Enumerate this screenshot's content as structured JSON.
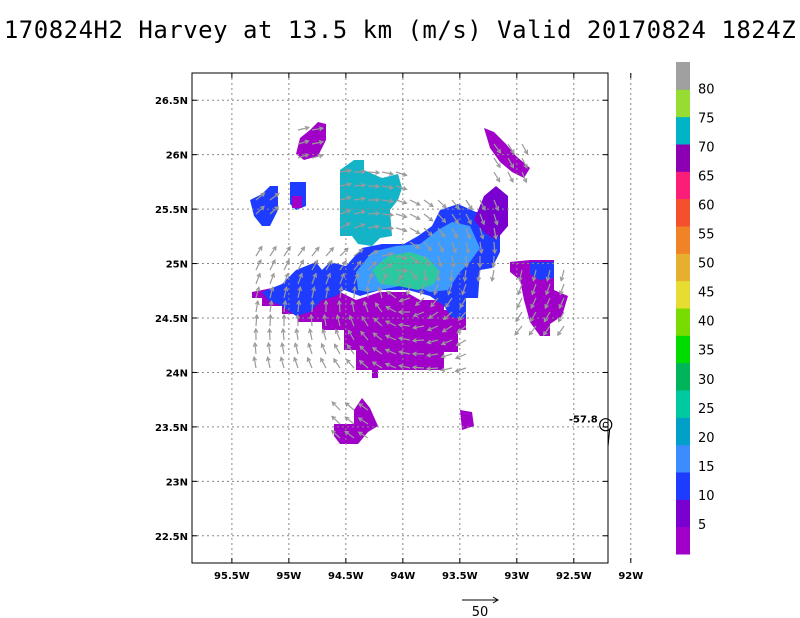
{
  "title": "170824H2 Harvey at 13.5 km (m/s) Valid 20170824 1824Z",
  "axes": {
    "lat_ticks": [
      "26.5N",
      "26N",
      "25.5N",
      "25N",
      "24.5N",
      "24N",
      "23.5N",
      "23N",
      "22.5N"
    ],
    "lon_ticks": [
      "95.5W",
      "95W",
      "94.5W",
      "94W",
      "93.5W",
      "93W",
      "92.5W",
      "92W"
    ],
    "lat_values": [
      26.5,
      26.0,
      25.5,
      25.0,
      24.5,
      24.0,
      23.5,
      23.0,
      22.5
    ],
    "lon_values": [
      -95.5,
      -95.0,
      -94.5,
      -94.0,
      -93.5,
      -93.0,
      -92.5,
      -92.0
    ],
    "lat_range": [
      22.25,
      26.75
    ],
    "lon_range": [
      -95.85,
      -92.2
    ],
    "grid": "dotted"
  },
  "colorbar": {
    "labels": [
      "5",
      "10",
      "15",
      "20",
      "25",
      "30",
      "35",
      "40",
      "45",
      "50",
      "55",
      "60",
      "65",
      "70",
      "75",
      "80"
    ],
    "colors": [
      "#a000c8",
      "#7a00d0",
      "#1e3cff",
      "#3c8cff",
      "#00a0c8",
      "#00c8a0",
      "#00b45a",
      "#00dc00",
      "#78dc00",
      "#e6dc32",
      "#e6af2d",
      "#f08228",
      "#f5502d",
      "#fa1e78",
      "#8c00b4",
      "#00b4c8",
      "#96dc32",
      "#a0a0a0"
    ]
  },
  "storm_center": {
    "lat": 23.52,
    "lon": -92.22,
    "label": "-57.8"
  },
  "vector_scale": {
    "label": "50"
  },
  "colors": {
    "purple": "#a000c8",
    "violet": "#7a00d0",
    "blue": "#1e3cff",
    "lightblue": "#3c9cff",
    "cyan": "#14b4c8",
    "teal": "#2cc8a0",
    "arrow": "#9a9a9a"
  }
}
